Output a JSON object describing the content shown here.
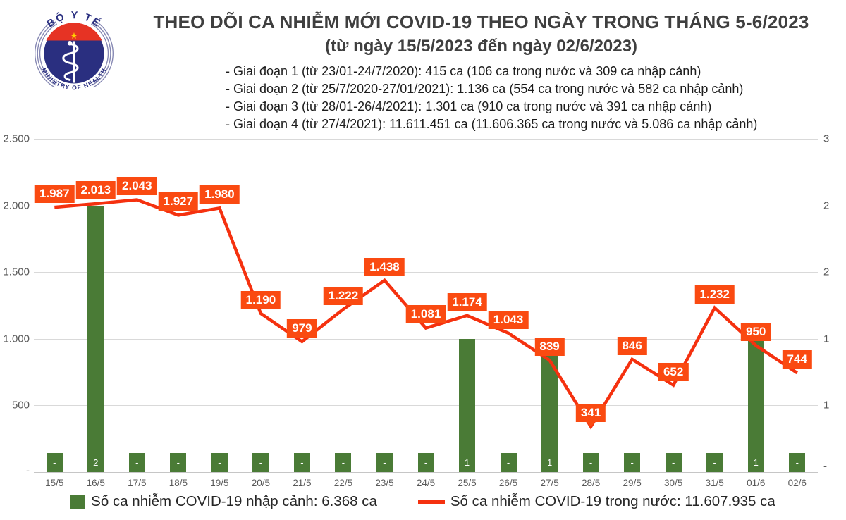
{
  "header": {
    "title": "THEO DÕI CA NHIỄM MỚI COVID-19 THEO NGÀY TRONG THÁNG 5-6/2023",
    "subtitle": "(từ ngày 15/5/2023 đến ngày 02/6/2023)",
    "phases": [
      "- Giai đoạn 1 (từ 23/01-24/7/2020): 415 ca (106 ca trong nước và 309 ca nhập cảnh)",
      "- Giai đoạn 2 (từ 25/7/2020-27/01/2021): 1.136 ca (554 ca trong nước và 582 ca nhập cảnh)",
      "- Giai đoạn 3 (từ 28/01-26/4/2021): 1.301 ca (910 ca trong nước và 391 ca nhập cảnh)",
      "- Giai đoạn 4 (từ 27/4/2021): 11.611.451 ca (11.606.365 ca trong nước và 5.086 ca nhập cảnh)"
    ],
    "logo": {
      "top_text": "BỘ Y TẾ",
      "bottom_text": "MINISTRY OF HEALTH",
      "colors": {
        "navy": "#2a2f80",
        "red": "#e63324",
        "star": "#ffd200"
      }
    }
  },
  "chart_data": {
    "type": "combo-bar-line",
    "categories": [
      "15/5",
      "16/5",
      "17/5",
      "18/5",
      "19/5",
      "20/5",
      "21/5",
      "22/5",
      "23/5",
      "24/5",
      "25/5",
      "26/5",
      "27/5",
      "28/5",
      "29/5",
      "30/5",
      "31/5",
      "01/6",
      "02/6"
    ],
    "series": [
      {
        "name": "Số ca nhiễm COVID-19 nhập cảnh",
        "type": "bar",
        "axis": "right",
        "color": "#4a7b36",
        "values": [
          null,
          2,
          null,
          null,
          null,
          null,
          null,
          null,
          null,
          null,
          1,
          null,
          1,
          null,
          null,
          null,
          null,
          1,
          null
        ],
        "labels": [
          "-",
          "2",
          "-",
          "-",
          "-",
          "-",
          "-",
          "-",
          "-",
          "-",
          "1",
          "-",
          "1",
          "-",
          "-",
          "-",
          "-",
          "1",
          "-"
        ]
      },
      {
        "name": "Số ca nhiễm COVID-19 trong nước",
        "type": "line",
        "axis": "left",
        "color": "#f5310f",
        "values": [
          1987,
          2013,
          2043,
          1927,
          1980,
          1190,
          979,
          1222,
          1438,
          1081,
          1174,
          1043,
          839,
          341,
          846,
          652,
          1232,
          950,
          744
        ],
        "labels": [
          "1.987",
          "2.013",
          "2.043",
          "1.927",
          "1.980",
          "1.190",
          "979",
          "1.222",
          "1.438",
          "1.081",
          "1.174",
          "1.043",
          "839",
          "341",
          "846",
          "652",
          "1.232",
          "950",
          "744"
        ]
      }
    ],
    "left_axis": {
      "min": 0,
      "max": 2500,
      "ticks": [
        "2.500",
        "2.000",
        "1.500",
        "1.000",
        "500",
        "-"
      ]
    },
    "right_axis": {
      "min": 0,
      "max": 2.5,
      "ticks": [
        "3",
        "2",
        "2",
        "1",
        "1",
        "-"
      ]
    },
    "grid": true,
    "legend_position": "bottom",
    "data_label_color": "#fa4a11",
    "callout_pointer_index": 13
  },
  "legend": [
    {
      "swatch": "bar",
      "label": "Số ca nhiễm COVID-19 nhập cảnh: 6.368 ca"
    },
    {
      "swatch": "line",
      "label": "Số ca nhiễm COVID-19 trong nước: 11.607.935 ca"
    }
  ]
}
